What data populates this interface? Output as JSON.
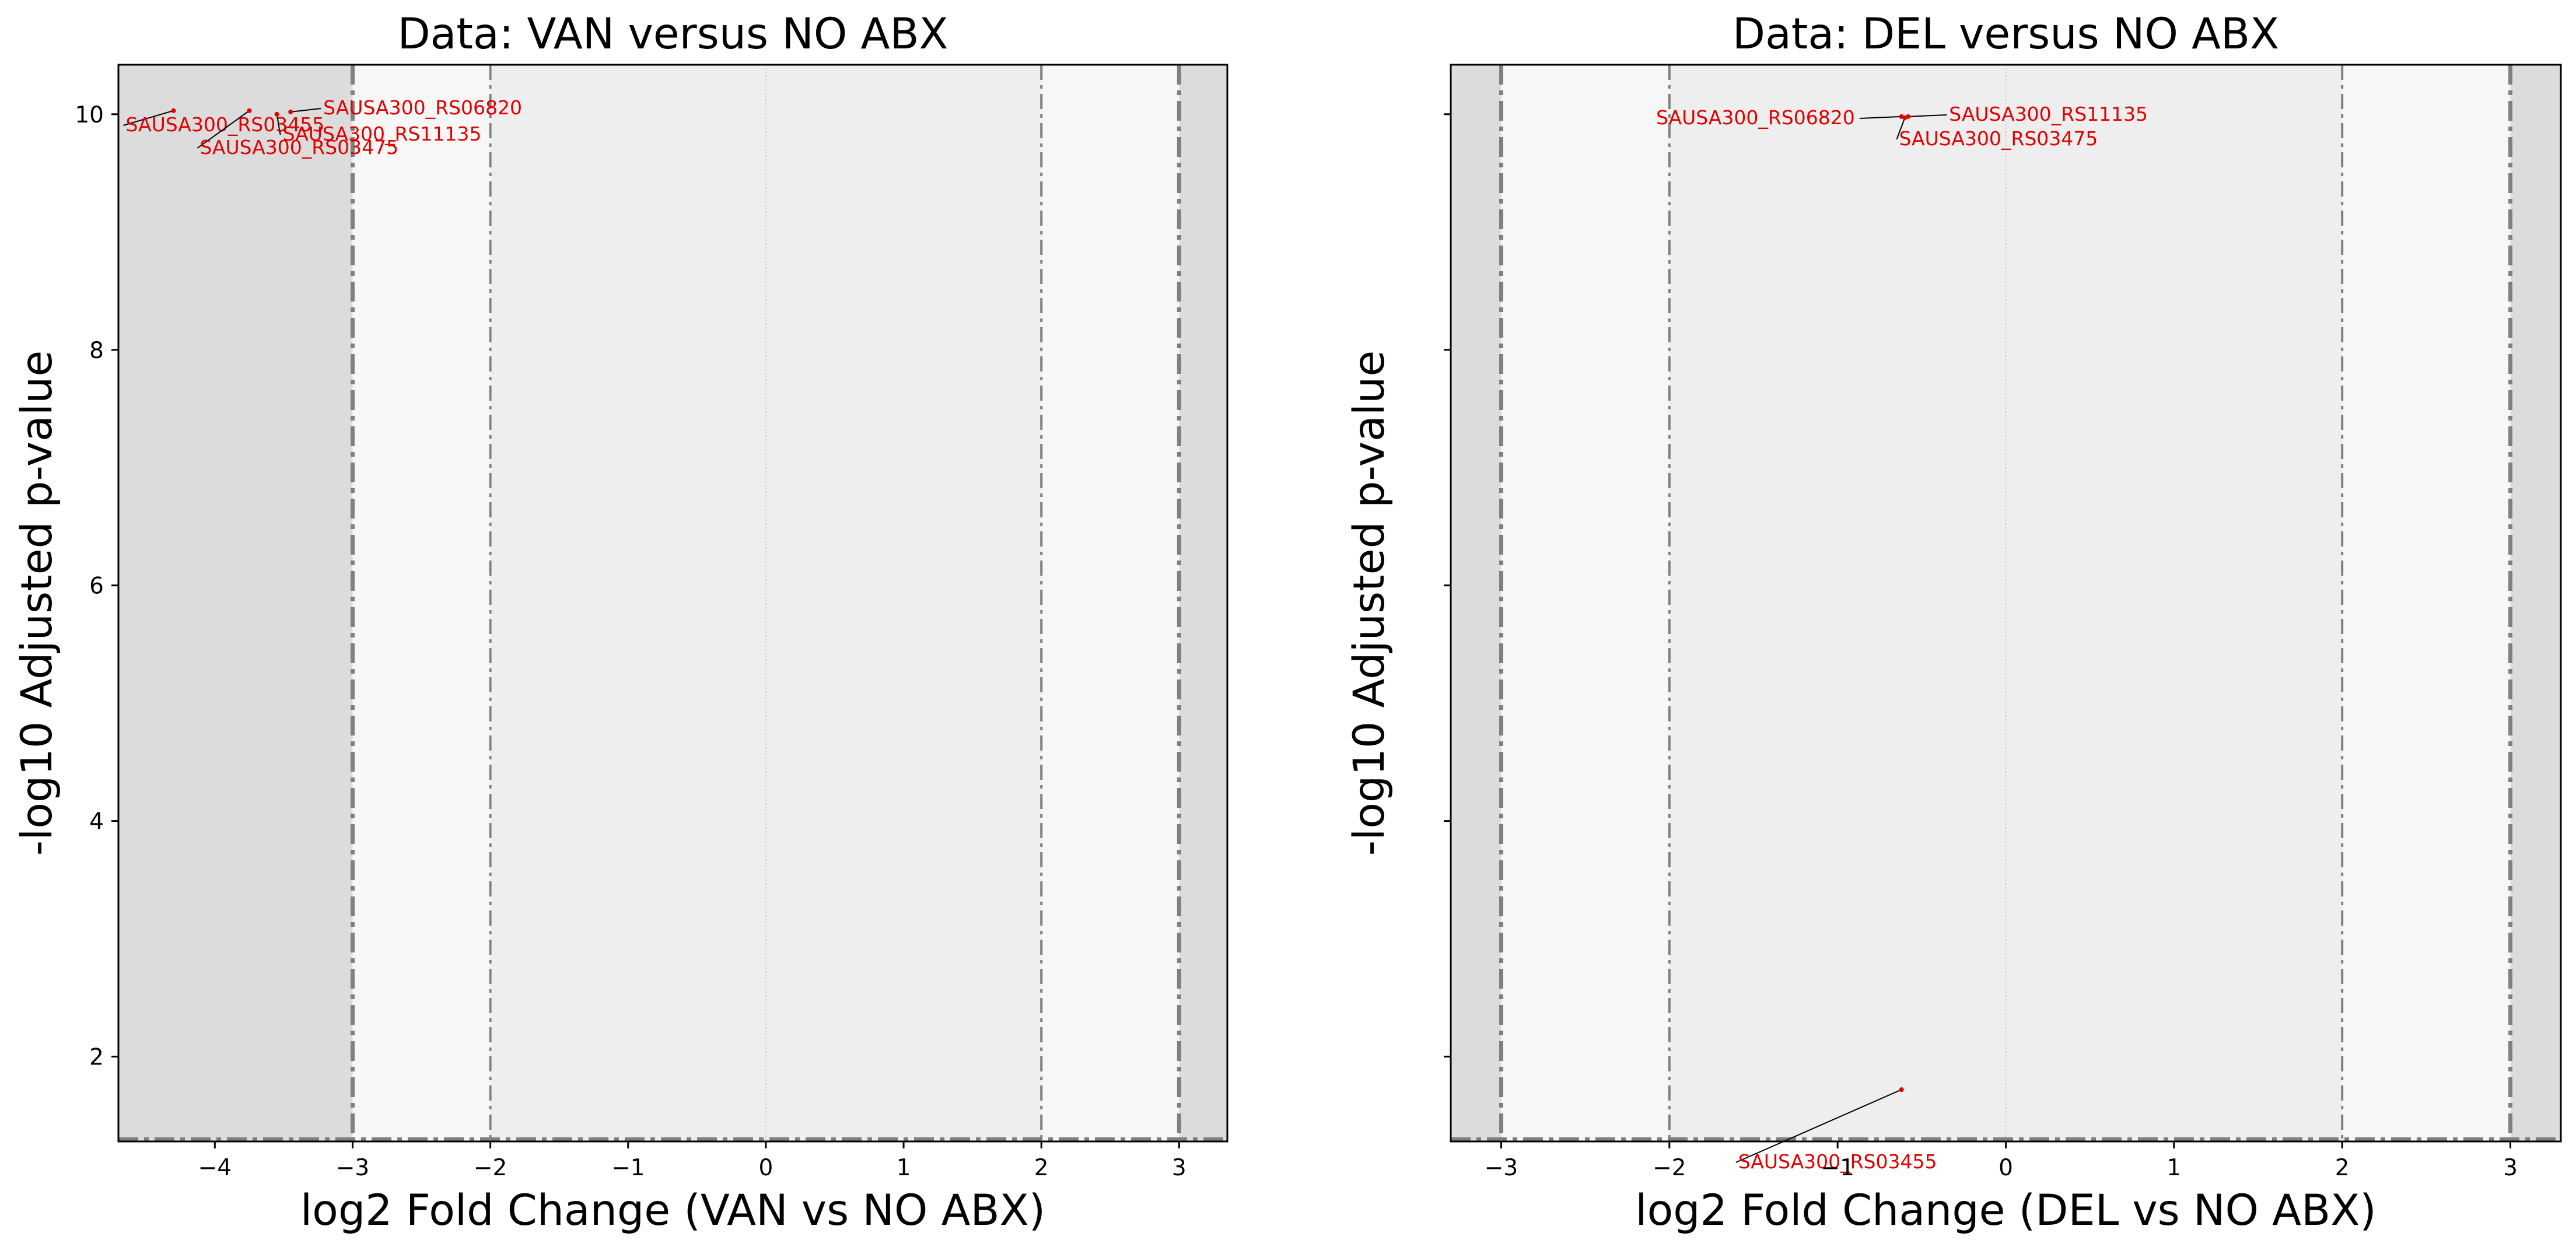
{
  "chart_data": [
    {
      "type": "scatter",
      "title": "Data: VAN versus NO ABX",
      "xlabel": "log2 Fold Change (VAN vs NO ABX)",
      "ylabel": "-log10 Adjusted p-value",
      "xlim": [
        -4.7,
        3.35
      ],
      "ylim": [
        1.28,
        10.42
      ],
      "xticks": [
        -4,
        -3,
        -2,
        -1,
        0,
        1,
        2,
        3
      ],
      "yticks": [
        2,
        4,
        6,
        8,
        10
      ],
      "fold_change_thresholds": [
        -3,
        -2,
        2,
        3
      ],
      "pvalue_threshold": 1.3,
      "grid": false,
      "background_colors": {
        "outer": "#dcdcdc",
        "middle": "#f7f7f7",
        "inner": "#eeeeee"
      },
      "label_color": "#e00000",
      "points": [
        {
          "x": -4.3,
          "y": 10.03,
          "label": "SAUSA300_RS03455"
        },
        {
          "x": -3.75,
          "y": 10.03,
          "label": "SAUSA300_RS03475"
        },
        {
          "x": -3.45,
          "y": 10.02,
          "label": "SAUSA300_RS06820"
        },
        {
          "x": -3.55,
          "y": 10.0,
          "label": "SAUSA300_RS11135"
        }
      ]
    },
    {
      "type": "scatter",
      "title": "Data: DEL versus NO ABX",
      "xlabel": "log2 Fold Change (DEL vs NO ABX)",
      "ylabel": "-log10 Adjusted p-value",
      "xlim": [
        -3.3,
        3.3
      ],
      "ylim": [
        1.28,
        10.42
      ],
      "xticks": [
        -3,
        -2,
        -1,
        0,
        1,
        2,
        3
      ],
      "yticks": [
        2,
        4,
        6,
        8,
        10
      ],
      "fold_change_thresholds": [
        -3,
        -2,
        2,
        3
      ],
      "pvalue_threshold": 1.3,
      "grid": false,
      "background_colors": {
        "outer": "#dcdcdc",
        "middle": "#f7f7f7",
        "inner": "#eeeeee"
      },
      "label_color": "#e00000",
      "points": [
        {
          "x": -0.62,
          "y": 9.98,
          "label": "SAUSA300_RS06820"
        },
        {
          "x": -0.58,
          "y": 9.98,
          "label": "SAUSA300_RS11135"
        },
        {
          "x": -0.6,
          "y": 9.97,
          "label": "SAUSA300_RS03475"
        },
        {
          "x": -0.62,
          "y": 1.72,
          "label": "SAUSA300_RS03455"
        }
      ]
    }
  ]
}
